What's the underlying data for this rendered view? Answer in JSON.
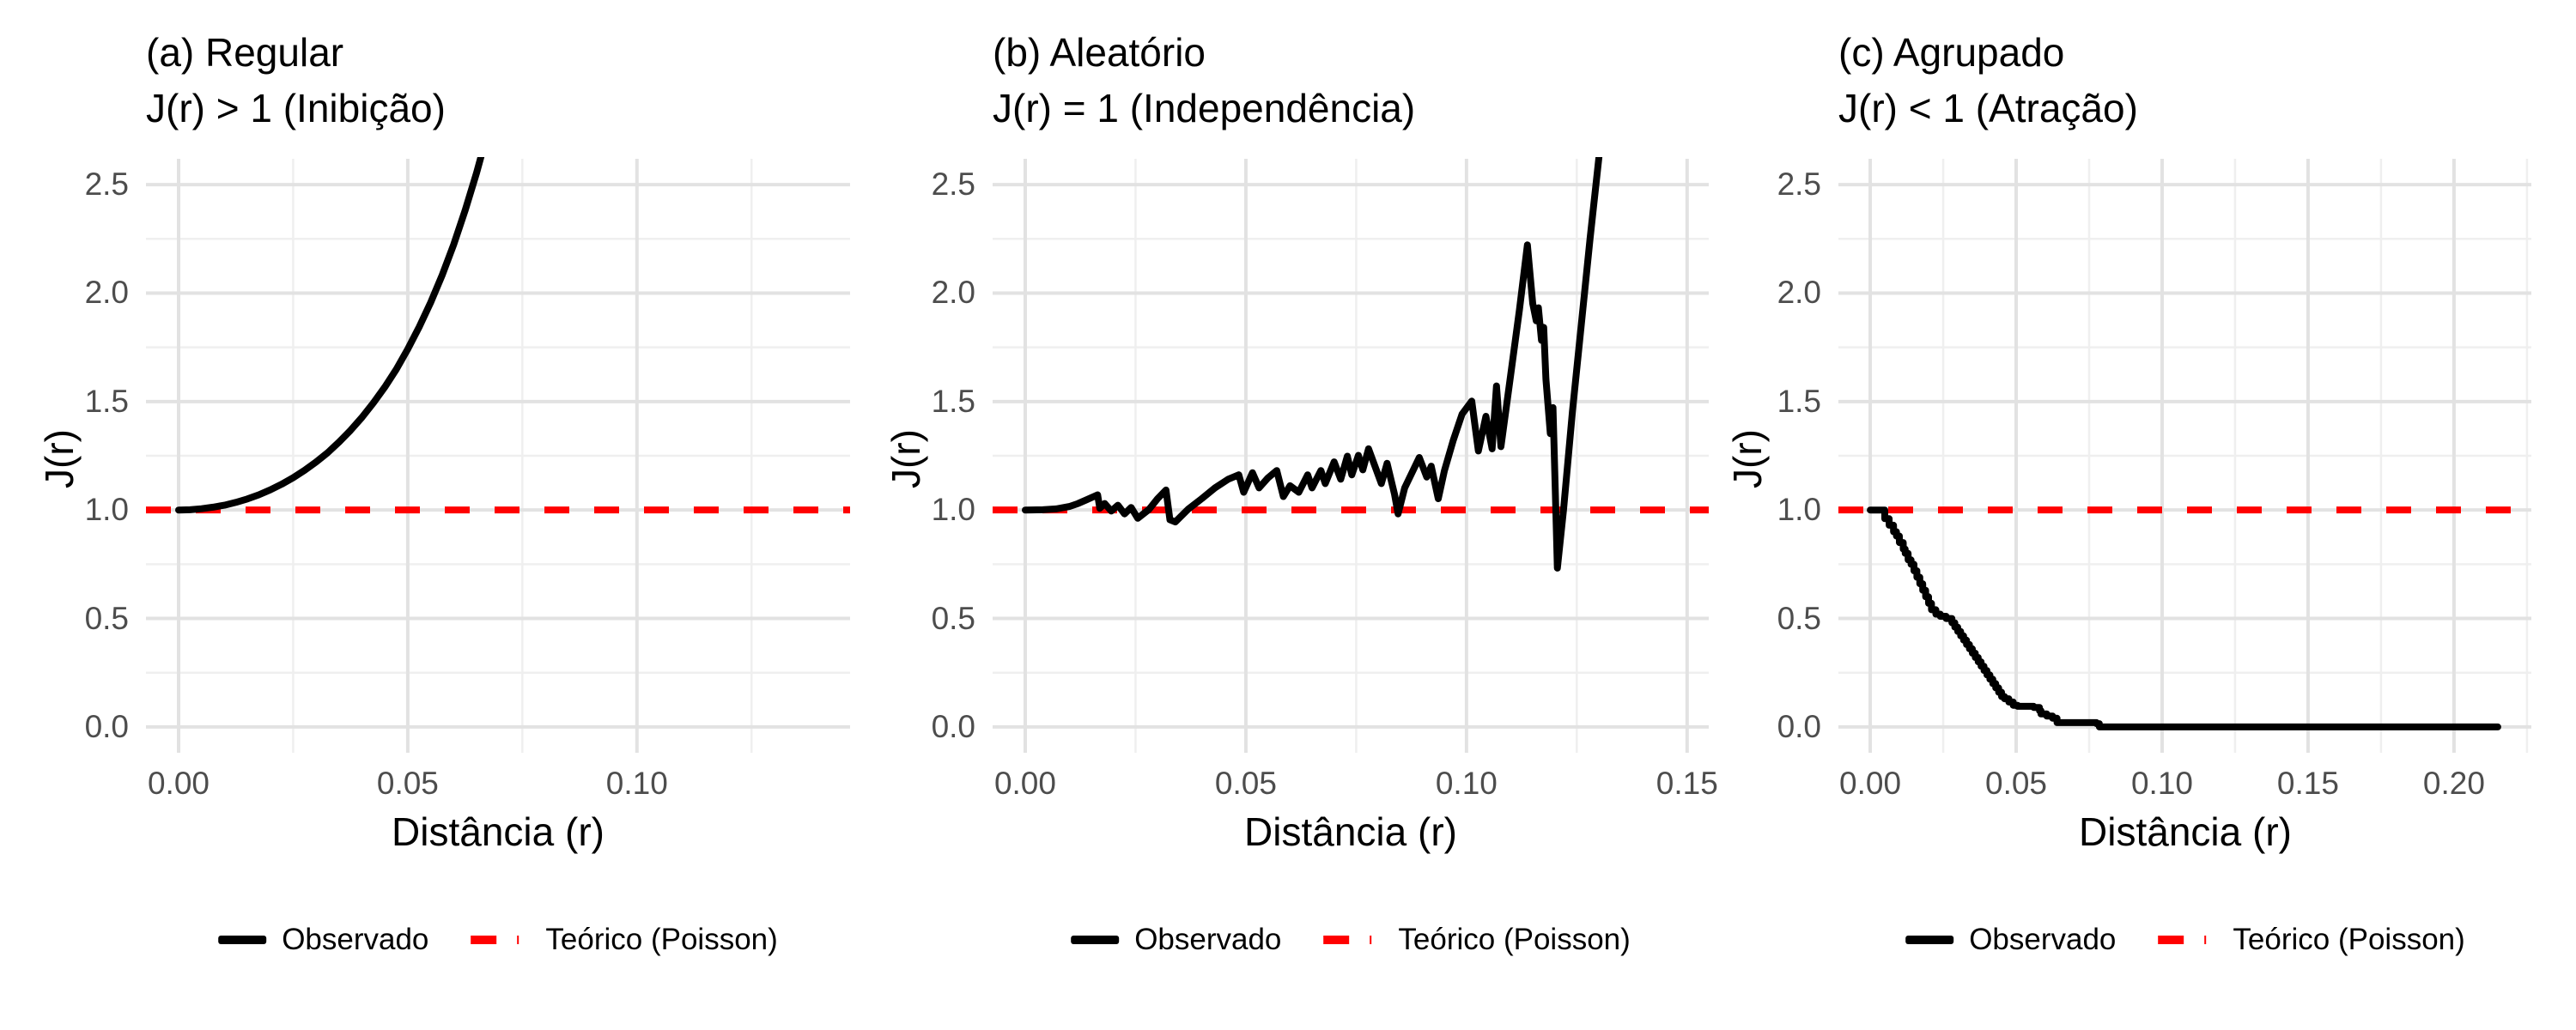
{
  "chart_data": {
    "type": "line",
    "description": "Three-panel comparison of the spatial J-function for regular, random and clustered point patterns",
    "ylabel": "J(r)",
    "xlabel": "Distância (r)",
    "ylim": [
      -0.119,
      2.619
    ],
    "y_ticks": [
      0.0,
      0.5,
      1.0,
      1.5,
      2.0,
      2.5
    ],
    "y_tick_labels": [
      "0.0",
      "0.5",
      "1.0",
      "1.5",
      "2.0",
      "2.5"
    ],
    "y_minor": [
      0.25,
      0.75,
      1.25,
      1.75,
      2.25
    ],
    "grid": true,
    "legend": {
      "position": "bottom",
      "observed": "Observado",
      "theoretical": "Teórico (Poisson)"
    },
    "theoretical_value": 1.0,
    "colors": {
      "observed": "#000000",
      "theoretical": "#FF0000",
      "grid_major": "#E2E2E2",
      "grid_minor": "#EFEFEF",
      "tick_text": "#4D4D4D",
      "title_text": "#000000",
      "background": "#FFFFFF"
    },
    "panels": [
      {
        "title": "(a) Regular",
        "subtitle": "J(r) > 1 (Inibição)",
        "x_ticks": [
          0.0,
          0.05,
          0.1
        ],
        "x_tick_labels": [
          "0.00",
          "0.05",
          "0.10"
        ],
        "x_minor": [
          0.025,
          0.075,
          0.125
        ],
        "xlim": [
          -0.00712,
          0.1465
        ],
        "step": false,
        "observed": [
          [
            0.0,
            1.0
          ],
          [
            0.0025,
            1.001
          ],
          [
            0.005,
            1.006
          ],
          [
            0.0075,
            1.013
          ],
          [
            0.01,
            1.022
          ],
          [
            0.0125,
            1.035
          ],
          [
            0.015,
            1.051
          ],
          [
            0.0175,
            1.07
          ],
          [
            0.02,
            1.093
          ],
          [
            0.0225,
            1.119
          ],
          [
            0.025,
            1.149
          ],
          [
            0.0275,
            1.183
          ],
          [
            0.03,
            1.221
          ],
          [
            0.0325,
            1.264
          ],
          [
            0.035,
            1.313
          ],
          [
            0.0375,
            1.367
          ],
          [
            0.04,
            1.427
          ],
          [
            0.0425,
            1.494
          ],
          [
            0.045,
            1.567
          ],
          [
            0.0475,
            1.649
          ],
          [
            0.05,
            1.742
          ],
          [
            0.0525,
            1.844
          ],
          [
            0.055,
            1.957
          ],
          [
            0.0575,
            2.082
          ],
          [
            0.06,
            2.223
          ],
          [
            0.0625,
            2.38
          ],
          [
            0.065,
            2.554
          ],
          [
            0.0675,
            2.746
          ]
        ]
      },
      {
        "title": "(b) Aleatório",
        "subtitle": "J(r) = 1 (Independência)",
        "x_ticks": [
          0.0,
          0.05,
          0.1,
          0.15
        ],
        "x_tick_labels": [
          "0.00",
          "0.05",
          "0.10",
          "0.15"
        ],
        "x_minor": [
          0.025,
          0.075,
          0.125
        ],
        "xlim": [
          -0.00739,
          0.1549
        ],
        "step": false,
        "observed": [
          [
            0.0,
            1.0
          ],
          [
            0.004,
            1.001
          ],
          [
            0.007,
            1.005
          ],
          [
            0.01,
            1.016
          ],
          [
            0.012,
            1.03
          ],
          [
            0.014,
            1.048
          ],
          [
            0.0164,
            1.07
          ],
          [
            0.0169,
            1.008
          ],
          [
            0.018,
            1.03
          ],
          [
            0.0195,
            0.995
          ],
          [
            0.021,
            1.022
          ],
          [
            0.0225,
            0.982
          ],
          [
            0.024,
            1.012
          ],
          [
            0.0255,
            0.962
          ],
          [
            0.028,
            1.002
          ],
          [
            0.03,
            1.052
          ],
          [
            0.0319,
            1.092
          ],
          [
            0.0328,
            0.955
          ],
          [
            0.034,
            0.945
          ],
          [
            0.037,
            1.005
          ],
          [
            0.04,
            1.052
          ],
          [
            0.043,
            1.102
          ],
          [
            0.046,
            1.142
          ],
          [
            0.0484,
            1.162
          ],
          [
            0.0495,
            1.082
          ],
          [
            0.0515,
            1.172
          ],
          [
            0.053,
            1.102
          ],
          [
            0.055,
            1.148
          ],
          [
            0.057,
            1.182
          ],
          [
            0.0585,
            1.062
          ],
          [
            0.06,
            1.112
          ],
          [
            0.062,
            1.082
          ],
          [
            0.064,
            1.162
          ],
          [
            0.065,
            1.102
          ],
          [
            0.067,
            1.182
          ],
          [
            0.068,
            1.122
          ],
          [
            0.07,
            1.222
          ],
          [
            0.0715,
            1.142
          ],
          [
            0.073,
            1.248
          ],
          [
            0.074,
            1.162
          ],
          [
            0.0755,
            1.252
          ],
          [
            0.0765,
            1.185
          ],
          [
            0.0778,
            1.282
          ],
          [
            0.0807,
            1.122
          ],
          [
            0.082,
            1.215
          ],
          [
            0.0837,
            1.072
          ],
          [
            0.0845,
            0.982
          ],
          [
            0.086,
            1.102
          ],
          [
            0.0893,
            1.242
          ],
          [
            0.091,
            1.152
          ],
          [
            0.092,
            1.202
          ],
          [
            0.0936,
            1.052
          ],
          [
            0.095,
            1.182
          ],
          [
            0.097,
            1.322
          ],
          [
            0.099,
            1.442
          ],
          [
            0.1012,
            1.502
          ],
          [
            0.1027,
            1.272
          ],
          [
            0.1044,
            1.432
          ],
          [
            0.1058,
            1.282
          ],
          [
            0.1068,
            1.572
          ],
          [
            0.1078,
            1.292
          ],
          [
            0.11,
            1.622
          ],
          [
            0.112,
            1.922
          ],
          [
            0.1138,
            2.222
          ],
          [
            0.115,
            1.952
          ],
          [
            0.1158,
            1.872
          ],
          [
            0.1163,
            1.932
          ],
          [
            0.117,
            1.782
          ],
          [
            0.1175,
            1.842
          ],
          [
            0.118,
            1.602
          ],
          [
            0.119,
            1.352
          ],
          [
            0.1196,
            1.472
          ],
          [
            0.1201,
            1.102
          ],
          [
            0.1206,
            0.732
          ],
          [
            0.122,
            1.002
          ],
          [
            0.124,
            1.452
          ],
          [
            0.126,
            1.852
          ],
          [
            0.128,
            2.252
          ],
          [
            0.13,
            2.622
          ],
          [
            0.1308,
            2.82
          ]
        ]
      },
      {
        "title": "(c) Agrupado",
        "subtitle": "J(r) < 1 (Atração)",
        "x_ticks": [
          0.0,
          0.05,
          0.1,
          0.15,
          0.2
        ],
        "x_tick_labels": [
          "0.00",
          "0.05",
          "0.10",
          "0.15",
          "0.20"
        ],
        "x_minor": [
          0.025,
          0.075,
          0.125,
          0.175,
          0.225
        ],
        "xlim": [
          -0.0109,
          0.2265
        ],
        "step": true,
        "observed": [
          [
            0.0,
            1.0
          ],
          [
            0.004,
            1.0
          ],
          [
            0.005,
            0.96
          ],
          [
            0.0065,
            0.93
          ],
          [
            0.008,
            0.9
          ],
          [
            0.009,
            0.88
          ],
          [
            0.01,
            0.85
          ],
          [
            0.0113,
            0.82
          ],
          [
            0.012,
            0.8
          ],
          [
            0.013,
            0.77
          ],
          [
            0.014,
            0.75
          ],
          [
            0.015,
            0.72
          ],
          [
            0.016,
            0.69
          ],
          [
            0.017,
            0.66
          ],
          [
            0.018,
            0.63
          ],
          [
            0.019,
            0.6
          ],
          [
            0.02,
            0.57
          ],
          [
            0.021,
            0.54
          ],
          [
            0.0225,
            0.52
          ],
          [
            0.024,
            0.51
          ],
          [
            0.026,
            0.5
          ],
          [
            0.028,
            0.48
          ],
          [
            0.029,
            0.46
          ],
          [
            0.03,
            0.44
          ],
          [
            0.031,
            0.42
          ],
          [
            0.032,
            0.4
          ],
          [
            0.033,
            0.38
          ],
          [
            0.034,
            0.36
          ],
          [
            0.035,
            0.34
          ],
          [
            0.036,
            0.32
          ],
          [
            0.037,
            0.3
          ],
          [
            0.038,
            0.28
          ],
          [
            0.039,
            0.26
          ],
          [
            0.04,
            0.24
          ],
          [
            0.041,
            0.22
          ],
          [
            0.042,
            0.2
          ],
          [
            0.043,
            0.18
          ],
          [
            0.044,
            0.16
          ],
          [
            0.045,
            0.14
          ],
          [
            0.046,
            0.13
          ],
          [
            0.0475,
            0.115
          ],
          [
            0.049,
            0.1
          ],
          [
            0.0505,
            0.095
          ],
          [
            0.056,
            0.09
          ],
          [
            0.058,
            0.075
          ],
          [
            0.0585,
            0.06
          ],
          [
            0.0605,
            0.05
          ],
          [
            0.0625,
            0.04
          ],
          [
            0.064,
            0.02
          ],
          [
            0.0775,
            0.015
          ],
          [
            0.0785,
            0.0
          ],
          [
            0.215,
            0.0
          ]
        ]
      }
    ]
  }
}
